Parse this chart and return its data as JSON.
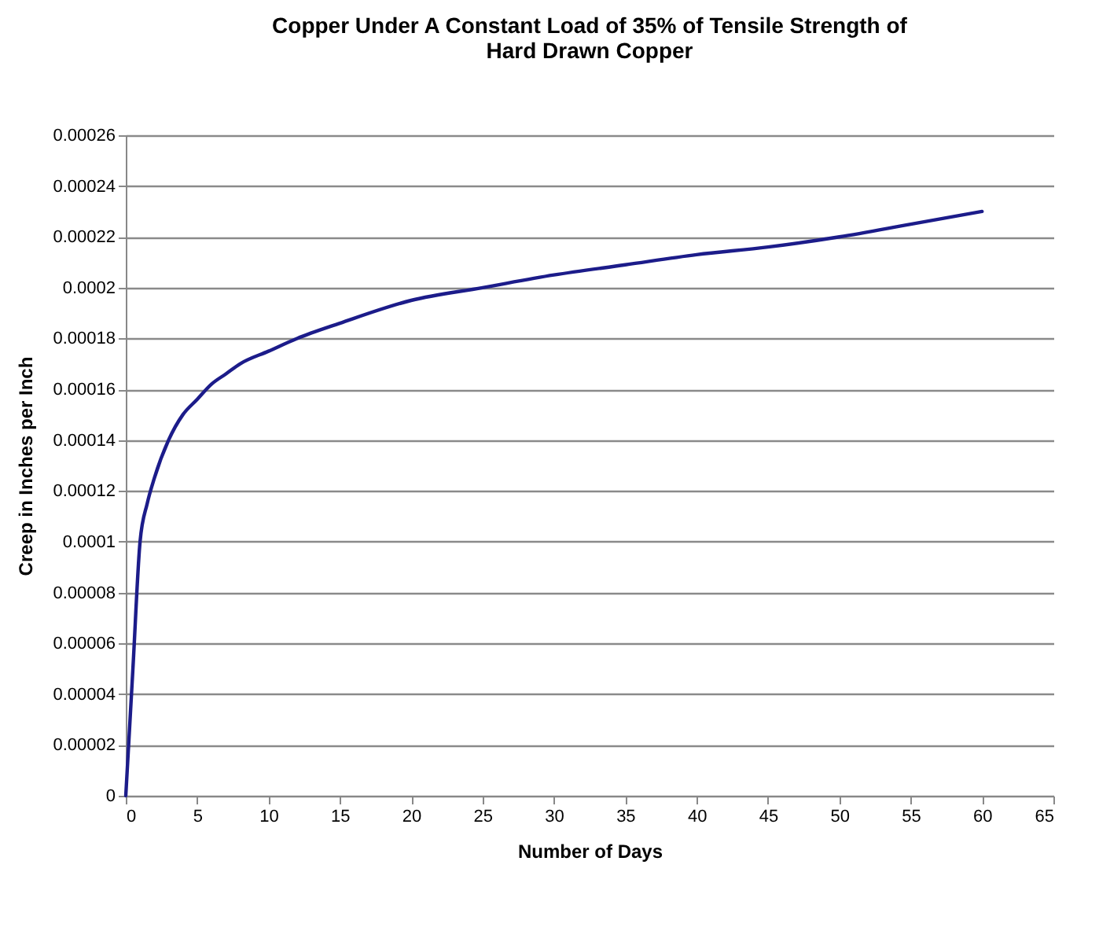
{
  "chart_data": {
    "type": "line",
    "title": [
      "Copper Under  A Constant Load of 35%  of Tensile Strength of",
      "Hard Drawn Copper"
    ],
    "xlabel": "Number of Days",
    "ylabel": "Creep in Inches per Inch",
    "x": [
      0,
      0.5,
      1,
      1.5,
      2,
      3,
      4,
      5,
      6,
      7,
      8,
      10,
      12,
      15,
      20,
      25,
      30,
      35,
      40,
      45,
      50,
      55,
      60
    ],
    "series": [
      {
        "color": "#1c1c8a",
        "values": [
          0,
          5e-05,
          0.0001,
          0.000115,
          0.000125,
          0.00014,
          0.00015,
          0.000156,
          0.000162,
          0.000166,
          0.00017,
          0.000175,
          0.00018,
          0.000186,
          0.000195,
          0.0002,
          0.000205,
          0.000209,
          0.000213,
          0.000216,
          0.00022,
          0.000225,
          0.00023
        ]
      }
    ],
    "xlim": [
      0,
      65
    ],
    "xticks": [
      0,
      5,
      10,
      15,
      20,
      25,
      30,
      35,
      40,
      45,
      50,
      55,
      60,
      65
    ],
    "ylim": [
      0,
      0.00026
    ],
    "yticks": [
      0,
      {
        "value": 2e-05,
        "label": "0.00002"
      },
      {
        "value": 4e-05,
        "label": "0.00004"
      },
      {
        "value": 6e-05,
        "label": "0.00006"
      },
      {
        "value": 8e-05,
        "label": "0.00008"
      },
      0.0001,
      0.00012,
      0.00014,
      0.00016,
      0.00018,
      0.0002,
      0.00022,
      0.00024,
      0.00026
    ],
    "grid": "y",
    "marker": "none",
    "line_style": "solid"
  }
}
